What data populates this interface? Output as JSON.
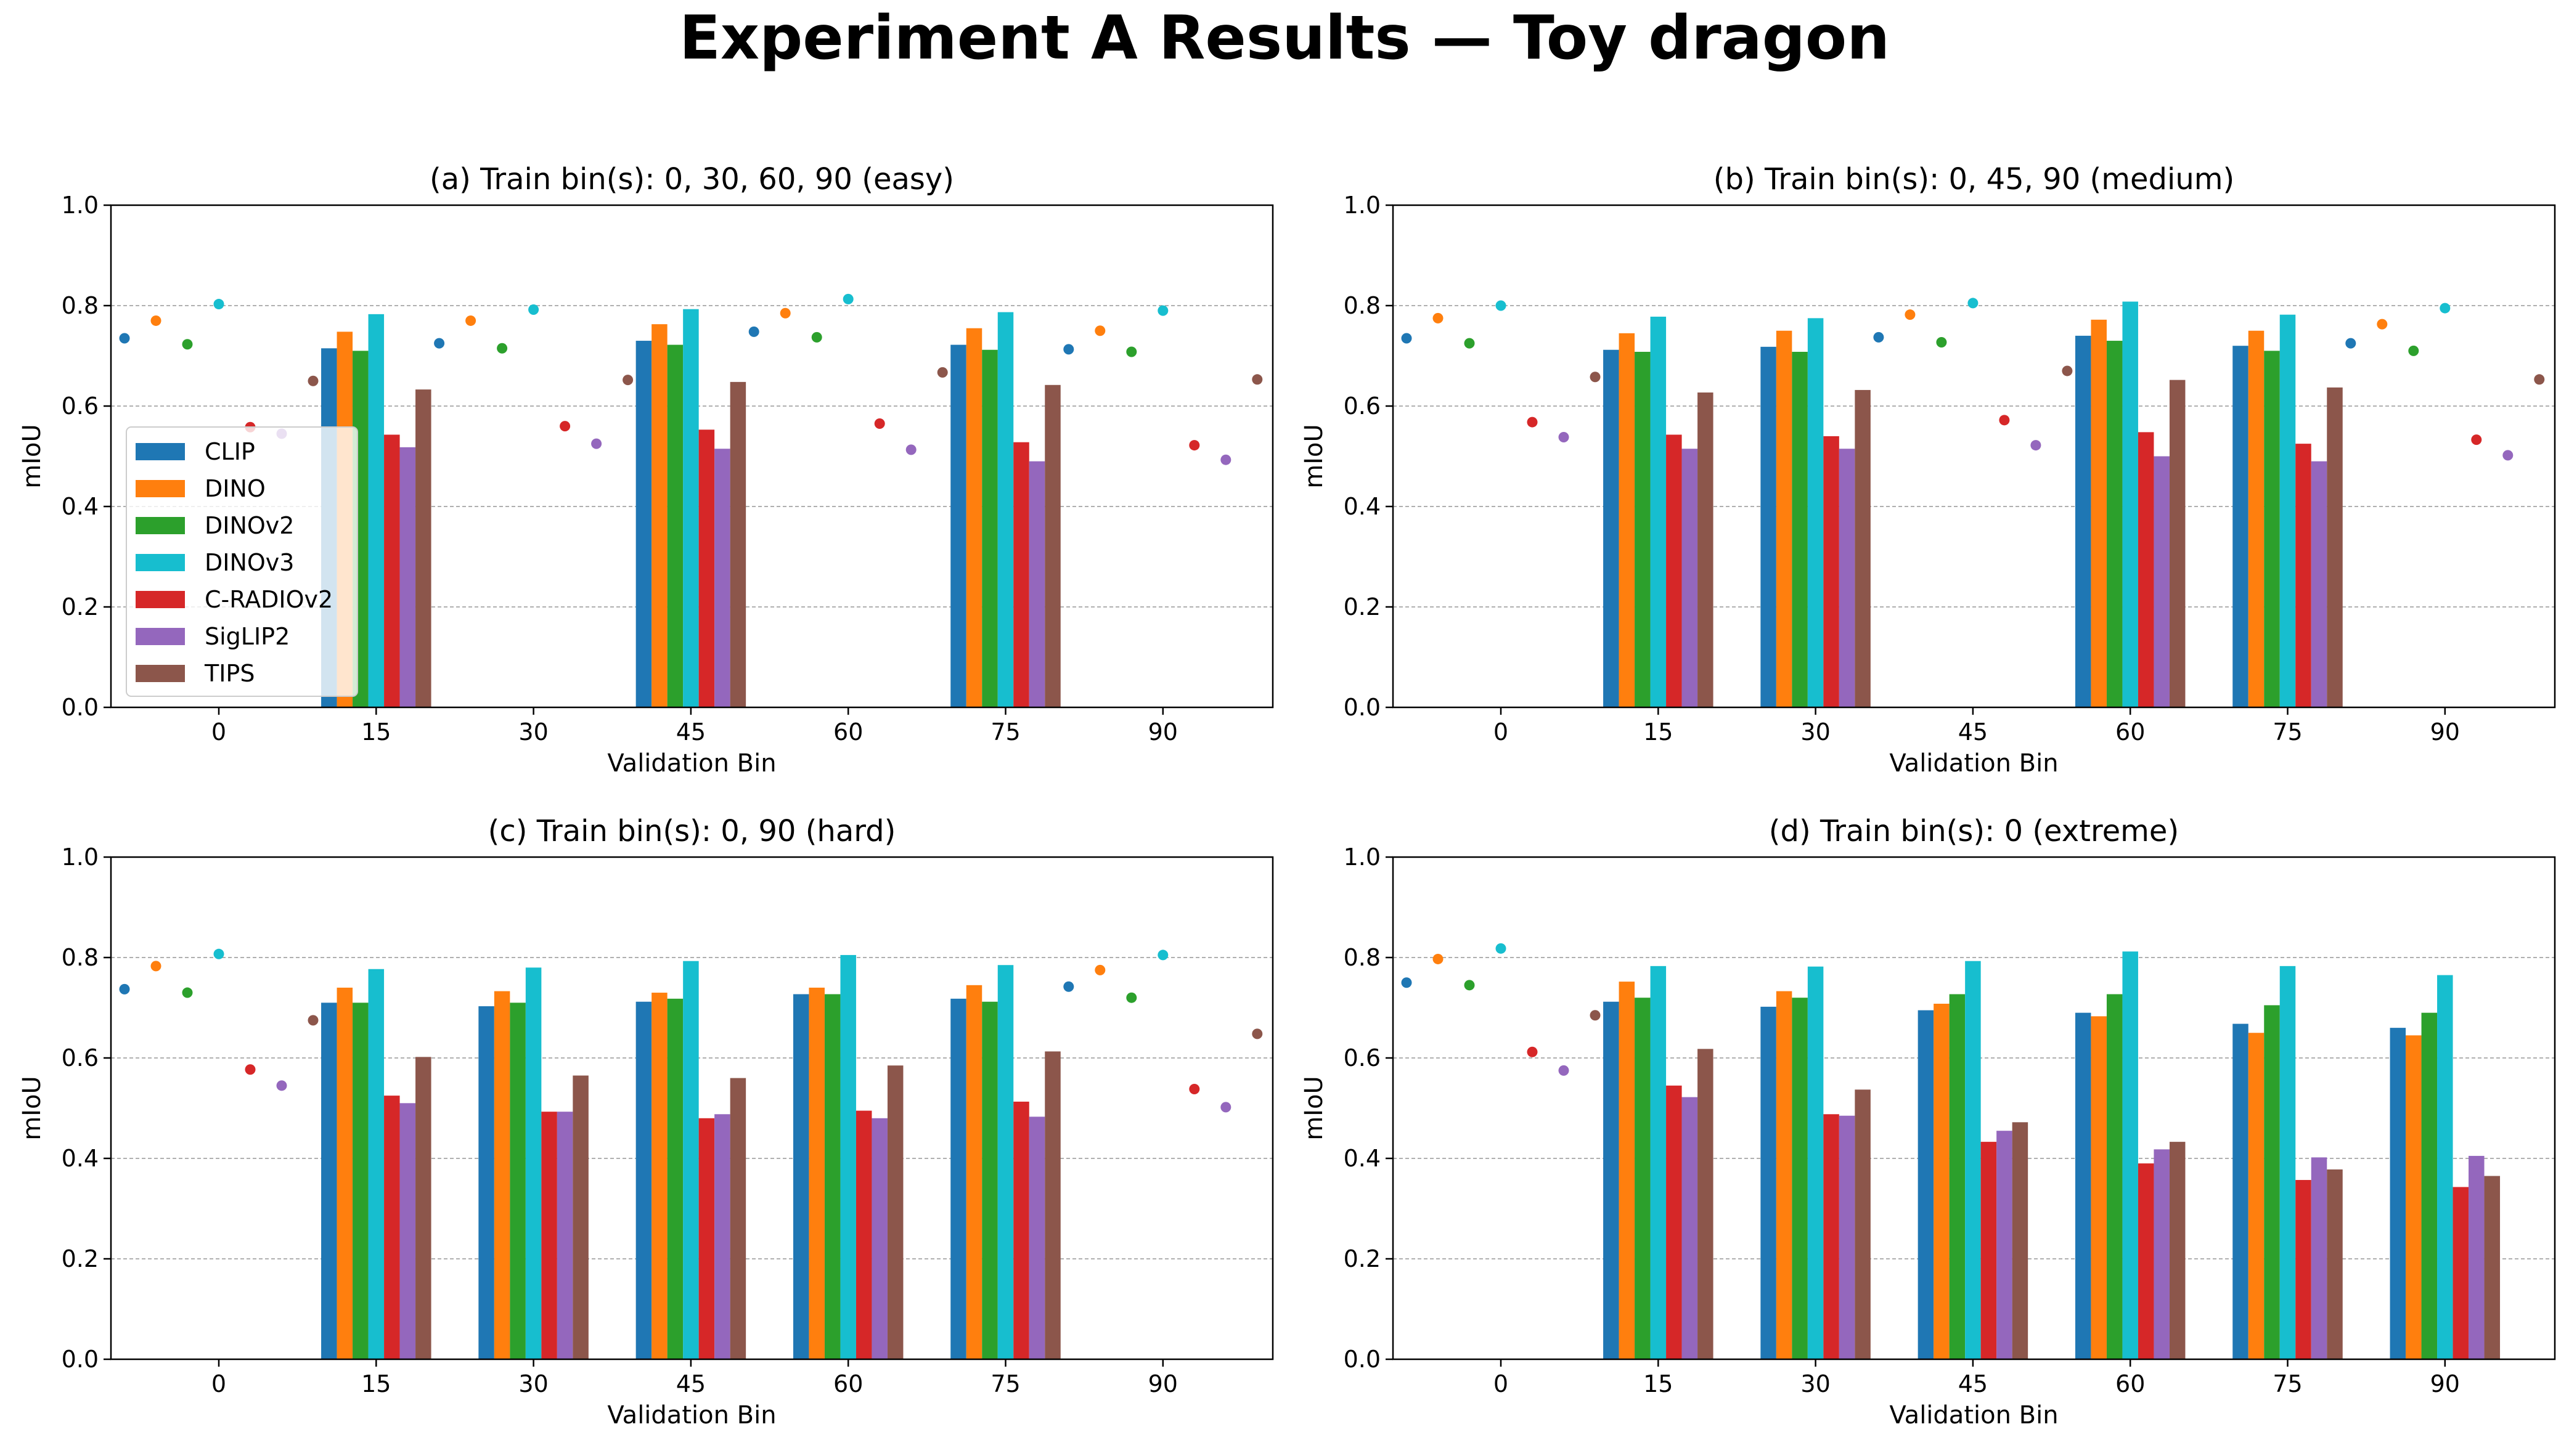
{
  "figure": {
    "title": "Experiment A Results — Toy dragon"
  },
  "colors": {
    "CLIP": "#1f77b4",
    "DINO": "#ff7f0e",
    "DINOv2": "#2ca02c",
    "DINOv3": "#17becf",
    "C-RADIOv2": "#d62728",
    "SigLIP2": "#9467bd",
    "TIPS": "#8c564b"
  },
  "legend": {
    "position": "lower-left of panel (a)",
    "entries": [
      "CLIP",
      "DINO",
      "DINOv2",
      "DINOv3",
      "C-RADIOv2",
      "SigLIP2",
      "TIPS"
    ]
  },
  "chart_data": [
    {
      "type": "bar",
      "title": "(a) Train bin(s): 0, 30, 60, 90 (easy)",
      "xlabel": "Validation Bin",
      "ylabel": "mIoU",
      "ylim": [
        0,
        1.0
      ],
      "yticks": [
        "0.0",
        "0.2",
        "0.4",
        "0.6",
        "0.8",
        "1.0"
      ],
      "grid": "y dashed",
      "categories": [
        "0",
        "15",
        "30",
        "45",
        "60",
        "75",
        "90"
      ],
      "train_bins": [
        "0",
        "30",
        "60",
        "90"
      ],
      "train_bins_note": "training bins drawn as dots, others as bars",
      "series": [
        {
          "name": "CLIP",
          "values": [
            0.735,
            0.715,
            0.725,
            0.73,
            0.748,
            0.722,
            0.713
          ]
        },
        {
          "name": "DINO",
          "values": [
            0.77,
            0.748,
            0.77,
            0.763,
            0.785,
            0.755,
            0.75
          ]
        },
        {
          "name": "DINOv2",
          "values": [
            0.723,
            0.71,
            0.715,
            0.722,
            0.737,
            0.712,
            0.708
          ]
        },
        {
          "name": "DINOv3",
          "values": [
            0.803,
            0.783,
            0.792,
            0.793,
            0.813,
            0.787,
            0.79
          ]
        },
        {
          "name": "C-RADIOv2",
          "values": [
            0.558,
            0.543,
            0.56,
            0.553,
            0.565,
            0.528,
            0.522
          ]
        },
        {
          "name": "SigLIP2",
          "values": [
            0.545,
            0.518,
            0.525,
            0.515,
            0.513,
            0.49,
            0.493
          ]
        },
        {
          "name": "TIPS",
          "values": [
            0.65,
            0.633,
            0.652,
            0.648,
            0.667,
            0.642,
            0.653
          ]
        }
      ]
    },
    {
      "type": "bar",
      "title": "(b) Train bin(s): 0, 45, 90 (medium)",
      "xlabel": "Validation Bin",
      "ylabel": "mIoU",
      "ylim": [
        0,
        1.0
      ],
      "yticks": [
        "0.0",
        "0.2",
        "0.4",
        "0.6",
        "0.8",
        "1.0"
      ],
      "grid": "y dashed",
      "categories": [
        "0",
        "15",
        "30",
        "45",
        "60",
        "75",
        "90"
      ],
      "train_bins": [
        "0",
        "45",
        "90"
      ],
      "train_bins_note": "training bins drawn as dots, others as bars",
      "series": [
        {
          "name": "CLIP",
          "values": [
            0.735,
            0.712,
            0.718,
            0.737,
            0.74,
            0.72,
            0.725
          ]
        },
        {
          "name": "DINO",
          "values": [
            0.775,
            0.745,
            0.75,
            0.782,
            0.772,
            0.75,
            0.763
          ]
        },
        {
          "name": "DINOv2",
          "values": [
            0.725,
            0.708,
            0.708,
            0.727,
            0.73,
            0.71,
            0.71
          ]
        },
        {
          "name": "DINOv3",
          "values": [
            0.8,
            0.778,
            0.775,
            0.805,
            0.808,
            0.782,
            0.795
          ]
        },
        {
          "name": "C-RADIOv2",
          "values": [
            0.568,
            0.543,
            0.54,
            0.572,
            0.548,
            0.525,
            0.533
          ]
        },
        {
          "name": "SigLIP2",
          "values": [
            0.538,
            0.515,
            0.515,
            0.522,
            0.5,
            0.49,
            0.502
          ]
        },
        {
          "name": "TIPS",
          "values": [
            0.658,
            0.627,
            0.632,
            0.67,
            0.652,
            0.637,
            0.653
          ]
        }
      ]
    },
    {
      "type": "bar",
      "title": "(c) Train bin(s): 0, 90 (hard)",
      "xlabel": "Validation Bin",
      "ylabel": "mIoU",
      "ylim": [
        0,
        1.0
      ],
      "yticks": [
        "0.0",
        "0.2",
        "0.4",
        "0.6",
        "0.8",
        "1.0"
      ],
      "grid": "y dashed",
      "categories": [
        "0",
        "15",
        "30",
        "45",
        "60",
        "75",
        "90"
      ],
      "train_bins": [
        "0",
        "90"
      ],
      "train_bins_note": "training bins drawn as dots, others as bars",
      "series": [
        {
          "name": "CLIP",
          "values": [
            0.737,
            0.71,
            0.703,
            0.712,
            0.727,
            0.718,
            0.742
          ]
        },
        {
          "name": "DINO",
          "values": [
            0.783,
            0.74,
            0.733,
            0.73,
            0.74,
            0.745,
            0.775
          ]
        },
        {
          "name": "DINOv2",
          "values": [
            0.73,
            0.71,
            0.71,
            0.718,
            0.727,
            0.712,
            0.72
          ]
        },
        {
          "name": "DINOv3",
          "values": [
            0.807,
            0.777,
            0.78,
            0.793,
            0.805,
            0.785,
            0.805
          ]
        },
        {
          "name": "C-RADIOv2",
          "values": [
            0.577,
            0.525,
            0.493,
            0.48,
            0.495,
            0.513,
            0.538
          ]
        },
        {
          "name": "SigLIP2",
          "values": [
            0.545,
            0.51,
            0.493,
            0.488,
            0.48,
            0.483,
            0.502
          ]
        },
        {
          "name": "TIPS",
          "values": [
            0.675,
            0.602,
            0.565,
            0.56,
            0.585,
            0.613,
            0.648
          ]
        }
      ]
    },
    {
      "type": "bar",
      "title": "(d) Train bin(s): 0 (extreme)",
      "xlabel": "Validation Bin",
      "ylabel": "mIoU",
      "ylim": [
        0,
        1.0
      ],
      "yticks": [
        "0.0",
        "0.2",
        "0.4",
        "0.6",
        "0.8",
        "1.0"
      ],
      "grid": "y dashed",
      "categories": [
        "0",
        "15",
        "30",
        "45",
        "60",
        "75",
        "90"
      ],
      "train_bins": [
        "0"
      ],
      "train_bins_note": "training bins drawn as dots, others as bars",
      "series": [
        {
          "name": "CLIP",
          "values": [
            0.75,
            0.712,
            0.702,
            0.695,
            0.69,
            0.668,
            0.66
          ]
        },
        {
          "name": "DINO",
          "values": [
            0.797,
            0.752,
            0.733,
            0.708,
            0.683,
            0.65,
            0.645
          ]
        },
        {
          "name": "DINOv2",
          "values": [
            0.745,
            0.72,
            0.72,
            0.727,
            0.727,
            0.705,
            0.69
          ]
        },
        {
          "name": "DINOv3",
          "values": [
            0.818,
            0.783,
            0.782,
            0.793,
            0.812,
            0.783,
            0.765
          ]
        },
        {
          "name": "C-RADIOv2",
          "values": [
            0.612,
            0.545,
            0.488,
            0.433,
            0.39,
            0.357,
            0.343
          ]
        },
        {
          "name": "SigLIP2",
          "values": [
            0.575,
            0.522,
            0.485,
            0.455,
            0.418,
            0.402,
            0.405
          ]
        },
        {
          "name": "TIPS",
          "values": [
            0.685,
            0.618,
            0.537,
            0.472,
            0.433,
            0.378,
            0.365
          ]
        }
      ]
    }
  ]
}
